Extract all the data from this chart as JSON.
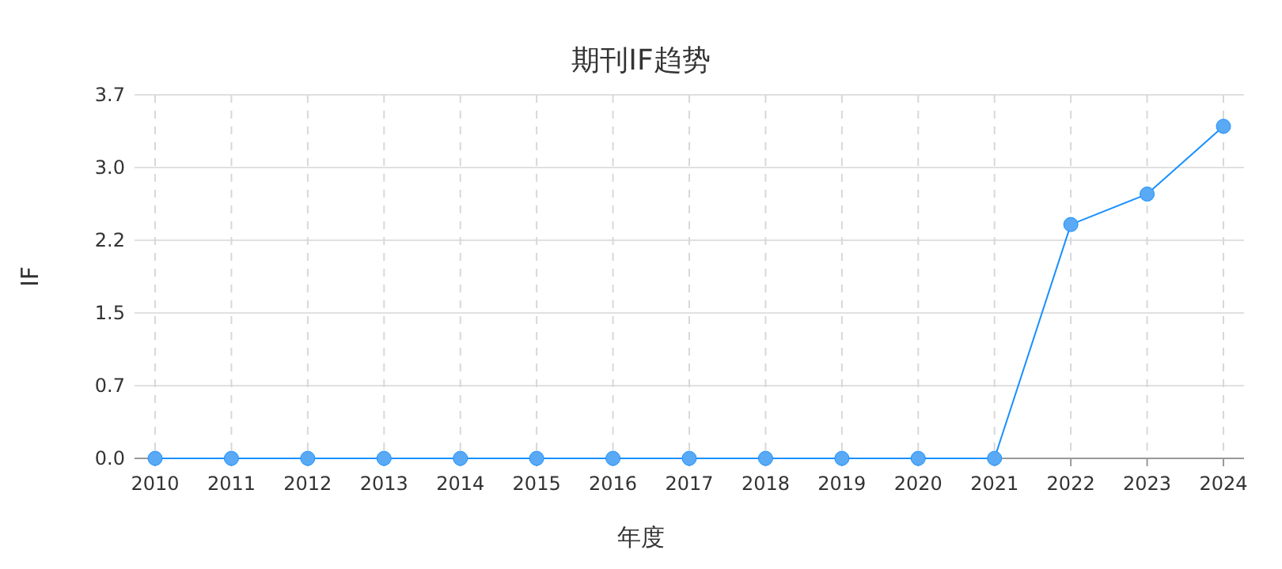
{
  "chart_data": {
    "type": "line",
    "title": "期刊IF趋势",
    "xlabel": "年度",
    "ylabel": "IF",
    "categories": [
      "2010",
      "2011",
      "2012",
      "2013",
      "2014",
      "2015",
      "2016",
      "2017",
      "2018",
      "2019",
      "2020",
      "2021",
      "2022",
      "2023",
      "2024"
    ],
    "series": [
      {
        "color": "#1890ff",
        "values": [
          0,
          0,
          0,
          0,
          0,
          0,
          0,
          0,
          0,
          0,
          0,
          0,
          2.38,
          2.69,
          3.38
        ]
      }
    ],
    "ylim": [
      0,
      3.7
    ],
    "yticks": [
      {
        "value": 0,
        "label": "0.0"
      },
      {
        "value": 0.74,
        "label": "0.7"
      },
      {
        "value": 1.48,
        "label": "1.5"
      },
      {
        "value": 2.22,
        "label": "2.2"
      },
      {
        "value": 2.96,
        "label": "3.0"
      },
      {
        "value": 3.7,
        "label": "3.7"
      }
    ],
    "grid": true,
    "marker": "circle",
    "line_style": "solid"
  }
}
